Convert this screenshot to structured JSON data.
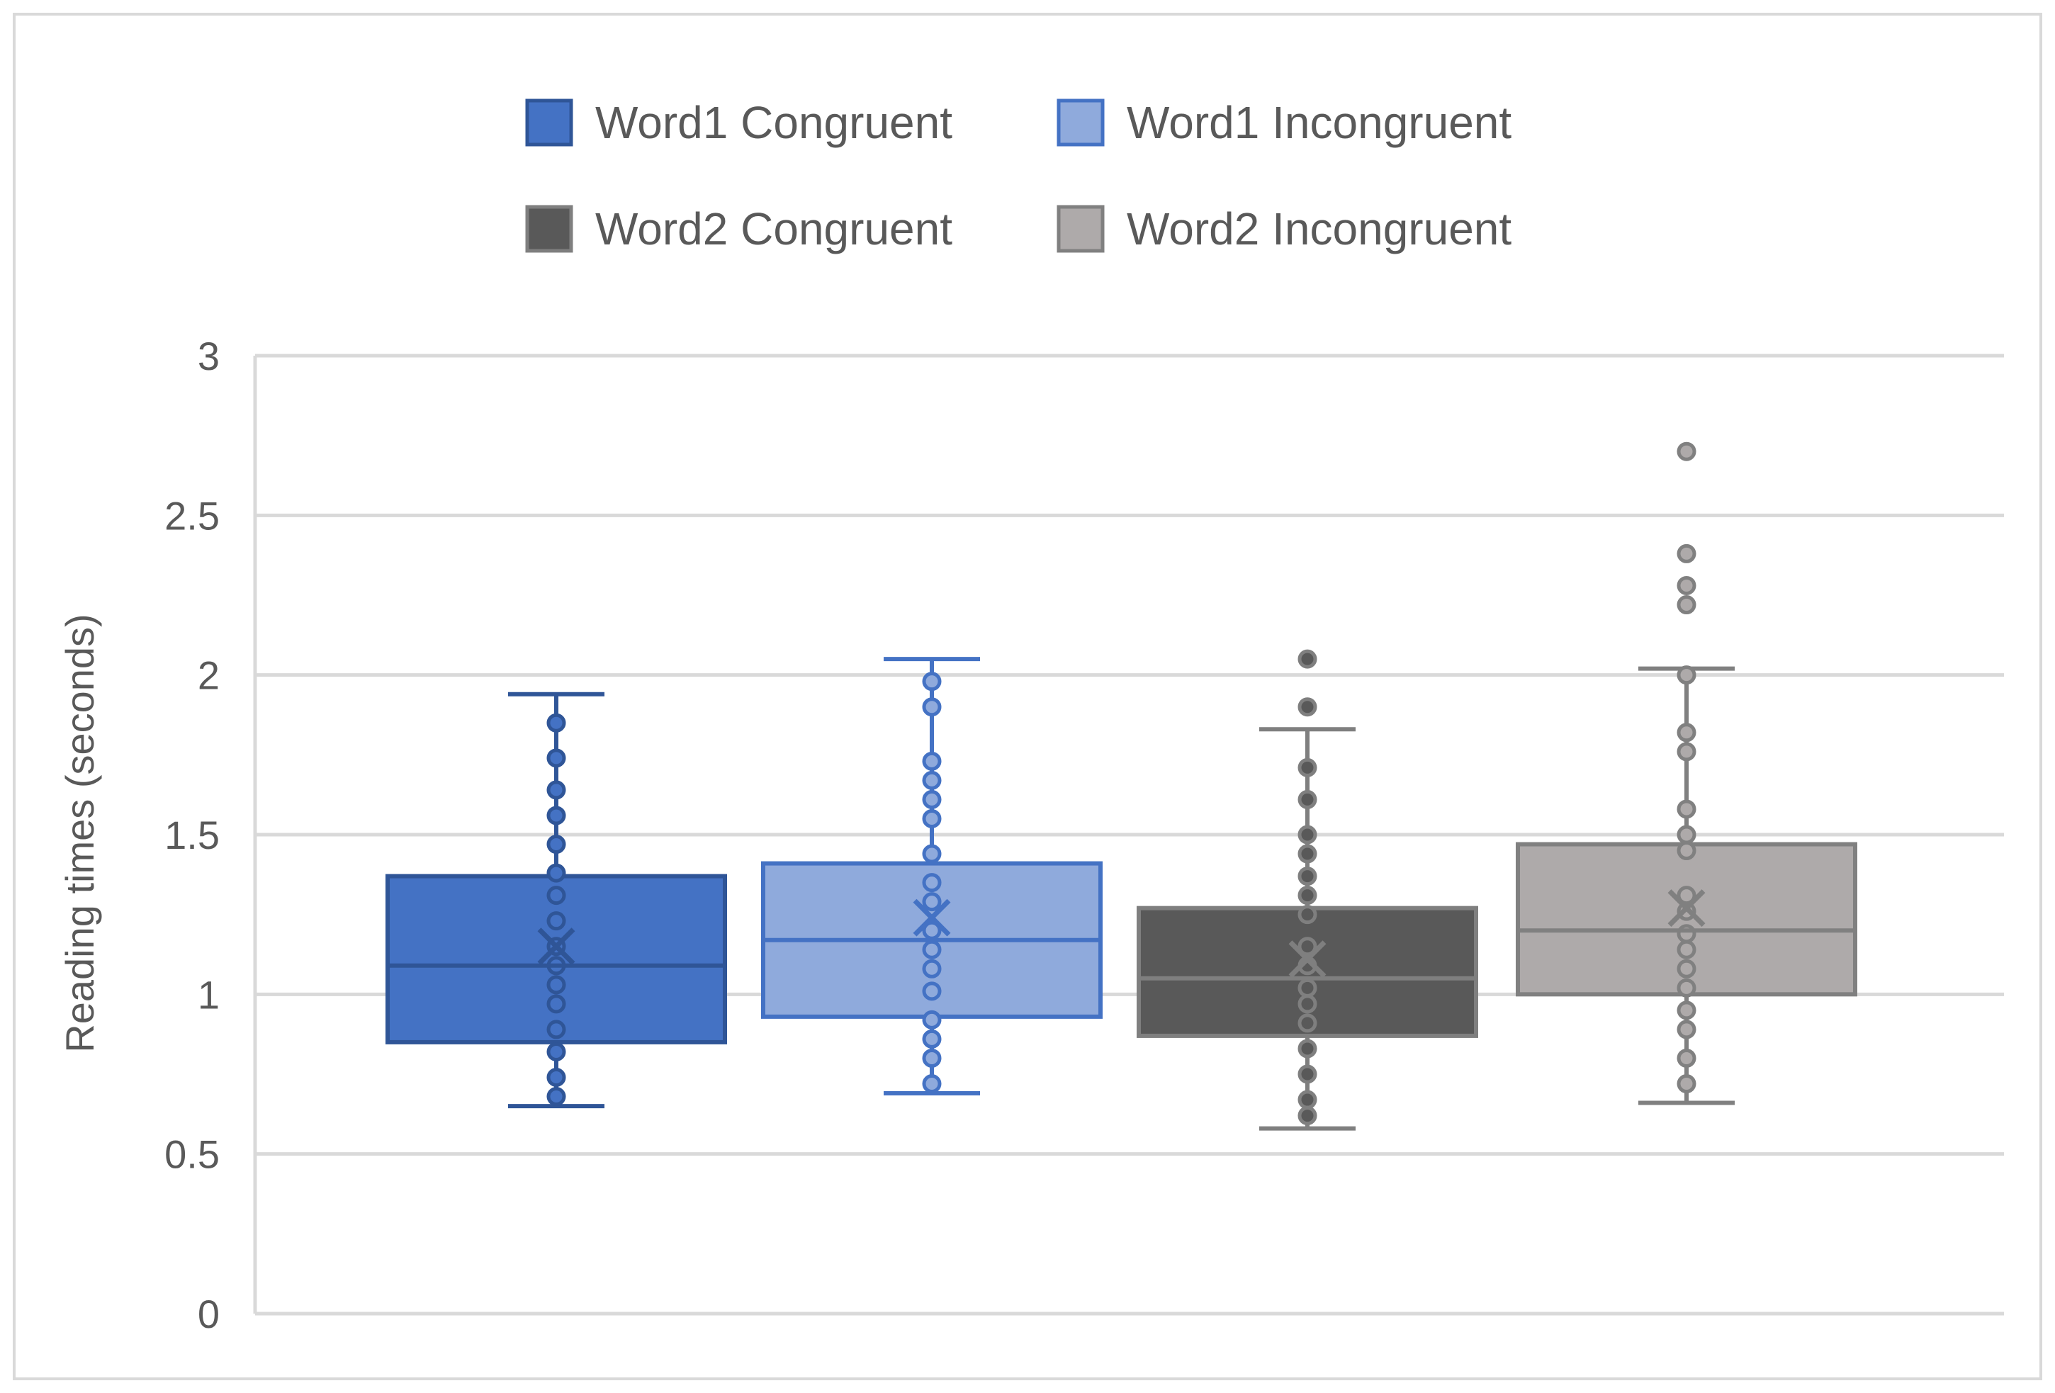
{
  "chart_data": {
    "type": "box",
    "title": "",
    "xlabel": "",
    "ylabel": "Reading times (seconds)",
    "ylim": [
      0,
      3
    ],
    "yticks": [
      0,
      0.5,
      1,
      1.5,
      2,
      2.5,
      3
    ],
    "ytick_labels": [
      "0",
      "0.5",
      "1",
      "1.5",
      "2",
      "2.5",
      "3"
    ],
    "grid": true,
    "legend_position": "top",
    "series": [
      {
        "name": "Word1 Congruent",
        "fill": "#4472c4",
        "stroke": "#2f5597",
        "whisker_low": 0.65,
        "q1": 0.85,
        "median": 1.09,
        "q3": 1.37,
        "whisker_high": 1.94,
        "mean": 1.15,
        "points": [
          1.85,
          1.74,
          1.64,
          1.56,
          1.47,
          1.38,
          1.31,
          1.23,
          1.15,
          1.09,
          1.03,
          0.97,
          0.89,
          0.82,
          0.74,
          0.68
        ]
      },
      {
        "name": "Word1 Incongruent",
        "fill": "#8faadc",
        "stroke": "#4472c4",
        "whisker_low": 0.69,
        "q1": 0.93,
        "median": 1.17,
        "q3": 1.41,
        "whisker_high": 2.05,
        "mean": 1.24,
        "points": [
          1.98,
          1.9,
          1.73,
          1.67,
          1.61,
          1.55,
          1.44,
          1.35,
          1.29,
          1.2,
          1.14,
          1.08,
          1.01,
          0.92,
          0.86,
          0.8,
          0.72
        ]
      },
      {
        "name": "Word2 Congruent",
        "fill": "#595959",
        "stroke": "#7f7f7f",
        "whisker_low": 0.58,
        "q1": 0.87,
        "median": 1.05,
        "q3": 1.27,
        "whisker_high": 1.83,
        "mean": 1.11,
        "points": [
          2.05,
          1.9,
          1.71,
          1.61,
          1.5,
          1.44,
          1.37,
          1.31,
          1.25,
          1.15,
          1.09,
          1.02,
          0.97,
          0.91,
          0.83,
          0.75,
          0.67,
          0.62
        ]
      },
      {
        "name": "Word2 Incongruent",
        "fill": "#aeaaaa",
        "stroke": "#808080",
        "whisker_low": 0.66,
        "q1": 1.0,
        "median": 1.2,
        "q3": 1.47,
        "whisker_high": 2.02,
        "mean": 1.27,
        "points": [
          2.7,
          2.38,
          2.28,
          2.22,
          2.0,
          1.82,
          1.76,
          1.58,
          1.5,
          1.45,
          1.31,
          1.26,
          1.19,
          1.14,
          1.08,
          1.02,
          0.95,
          0.89,
          0.8,
          0.72
        ]
      }
    ]
  }
}
